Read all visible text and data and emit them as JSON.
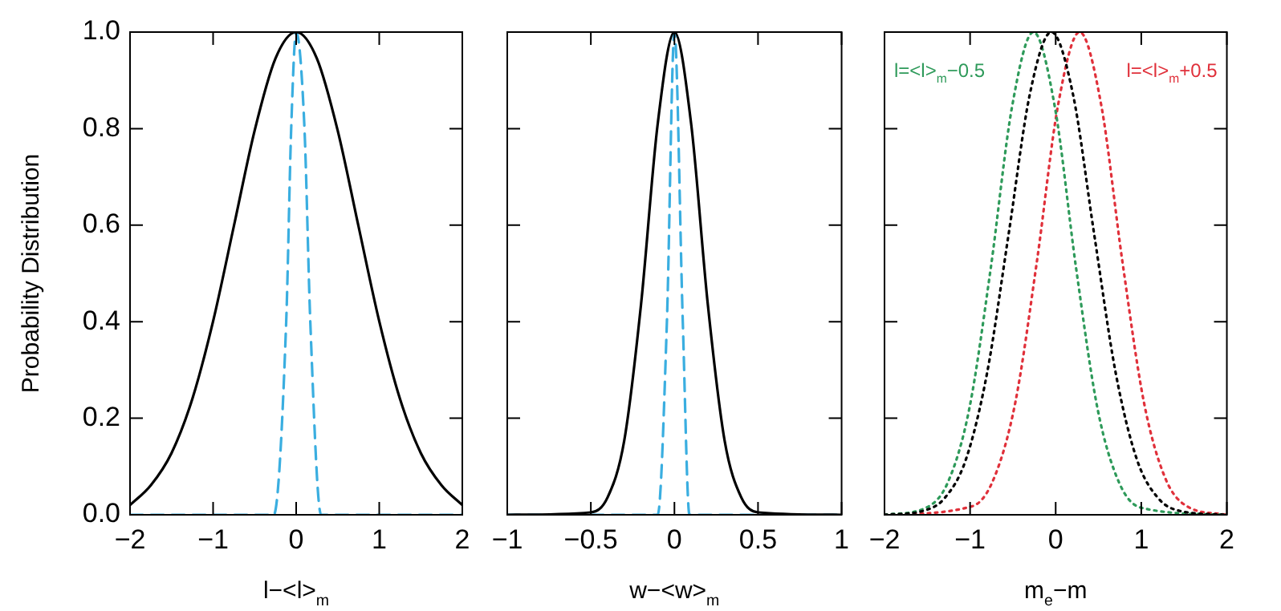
{
  "chart_data": [
    {
      "type": "line",
      "xlabel": "l−<l>$_{m}$",
      "ylabel": "Probability Distribution",
      "xlim": [
        -2,
        2
      ],
      "xticks": [
        -2,
        -1,
        0,
        1,
        2
      ],
      "ylim": [
        0,
        1
      ],
      "yticks": [
        {
          "value": 0,
          "label": "0.0"
        },
        0.2,
        0.4,
        0.6,
        0.8,
        {
          "value": 1,
          "label": "1.0"
        }
      ],
      "grid": false,
      "legend": false,
      "marker": "none",
      "series": [
        {
          "color": "#000000",
          "line_style": "solid",
          "x": [
            -2,
            -1.75,
            -1.5,
            -1.25,
            -1,
            -0.75,
            -0.5,
            -0.25,
            0,
            0.25,
            0.5,
            0.75,
            1,
            1.25,
            1.5,
            1.75,
            2
          ],
          "values": [
            0.02,
            0.061,
            0.128,
            0.24,
            0.401,
            0.598,
            0.796,
            0.945,
            1,
            0.945,
            0.796,
            0.598,
            0.401,
            0.24,
            0.128,
            0.061,
            0.02
          ]
        },
        {
          "color": "#3aaee0",
          "line_style": "dashed",
          "x": [
            -2,
            -0.27,
            -0.12,
            -0.06,
            0,
            0.1,
            0.17,
            0.3,
            2
          ],
          "values": [
            0,
            0,
            0.4,
            0.8,
            1,
            0.8,
            0.4,
            0,
            0
          ]
        }
      ]
    },
    {
      "type": "line",
      "xlabel": "w−<w>$_{m}$",
      "xlim": [
        -1,
        1
      ],
      "xticks": [
        -1,
        -0.5,
        0,
        0.5,
        1
      ],
      "ylim": [
        0,
        1
      ],
      "yticks": [
        0,
        0.2,
        0.4,
        0.6,
        0.8,
        1
      ],
      "tick_labels": "x",
      "grid": false,
      "legend": false,
      "marker": "none",
      "series": [
        {
          "color": "#000000",
          "line_style": "solid",
          "x": [
            -1,
            -0.5,
            -0.4,
            -0.3,
            -0.2,
            -0.1,
            0,
            0.1,
            0.2,
            0.3,
            0.4,
            0.5,
            1
          ],
          "values": [
            0,
            0.005,
            0.036,
            0.154,
            0.435,
            0.81,
            1,
            0.81,
            0.435,
            0.154,
            0.036,
            0.005,
            0
          ]
        },
        {
          "color": "#3aaee0",
          "line_style": "dashed",
          "x": [
            -1,
            -0.1,
            -0.045,
            0,
            0.05,
            0.09,
            1
          ],
          "values": [
            0,
            0,
            0.4,
            1,
            0.4,
            0,
            0
          ]
        }
      ]
    },
    {
      "type": "line",
      "xlabel": "m$_{e}$−m",
      "xlim": [
        -2,
        2
      ],
      "xticks": [
        -2,
        -1,
        0,
        1,
        2
      ],
      "ylim": [
        0,
        1
      ],
      "yticks": [
        0,
        0.2,
        0.4,
        0.6,
        0.8,
        1
      ],
      "tick_labels": "x",
      "grid": false,
      "legend": false,
      "marker": "none",
      "series": [
        {
          "color": "#000000",
          "line_style": "dotted",
          "x": [
            -2,
            -1.55,
            -1.3,
            -1.05,
            -0.8,
            -0.55,
            -0.3,
            -0.05,
            0.2,
            0.45,
            0.7,
            0.95,
            1.2,
            1.45,
            2
          ],
          "values": [
            0,
            0.008,
            0.034,
            0.114,
            0.295,
            0.581,
            0.873,
            1,
            0.873,
            0.581,
            0.295,
            0.114,
            0.034,
            0.008,
            0
          ]
        },
        {
          "name": "l=<l>$_{m}$−0.5",
          "color": "#2e9a5a",
          "line_style": "dotted",
          "x": [
            -2,
            -1.51,
            -1.26,
            -1.01,
            -0.76,
            -0.51,
            -0.26,
            -0.01,
            0.24,
            0.49,
            0.74,
            0.99,
            2
          ],
          "values": [
            0,
            0.015,
            0.067,
            0.219,
            0.509,
            0.845,
            1,
            0.845,
            0.509,
            0.219,
            0.067,
            0.015,
            0
          ]
        },
        {
          "name": "l=<l>$_{m}$+0.5",
          "color": "#e0303a",
          "line_style": "dotted",
          "x": [
            -2,
            -0.97,
            -0.72,
            -0.47,
            -0.22,
            0.03,
            0.28,
            0.53,
            0.78,
            1.03,
            1.28,
            1.53,
            2
          ],
          "values": [
            0,
            0.018,
            0.076,
            0.234,
            0.524,
            0.851,
            1,
            0.851,
            0.524,
            0.234,
            0.076,
            0.018,
            0
          ]
        }
      ]
    }
  ]
}
